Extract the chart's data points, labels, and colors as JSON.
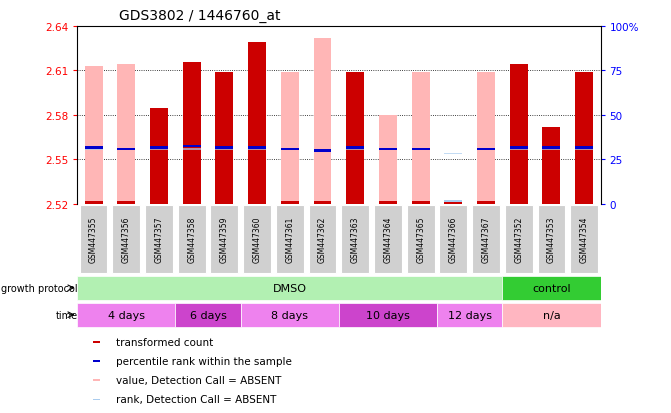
{
  "title": "GDS3802 / 1446760_at",
  "samples": [
    "GSM447355",
    "GSM447356",
    "GSM447357",
    "GSM447358",
    "GSM447359",
    "GSM447360",
    "GSM447361",
    "GSM447362",
    "GSM447363",
    "GSM447364",
    "GSM447365",
    "GSM447366",
    "GSM447367",
    "GSM447352",
    "GSM447353",
    "GSM447354"
  ],
  "red_bar_tops": [
    2.522,
    2.522,
    2.585,
    2.616,
    2.609,
    2.629,
    2.522,
    2.522,
    2.609,
    2.522,
    2.522,
    2.522,
    2.522,
    2.614,
    2.572,
    2.609
  ],
  "pink_bar_tops": [
    2.613,
    2.614,
    2.522,
    2.522,
    2.522,
    2.522,
    2.609,
    2.632,
    2.522,
    2.58,
    2.609,
    2.522,
    2.609,
    2.522,
    2.522,
    2.522
  ],
  "blue_marker_y": [
    2.558,
    2.557,
    2.558,
    2.559,
    2.558,
    2.558,
    2.557,
    2.556,
    2.558,
    2.557,
    2.557,
    2.522,
    2.557,
    2.558,
    2.558,
    2.558
  ],
  "lightblue_marker_y": [
    2.557,
    2.557,
    2.557,
    2.557,
    2.557,
    2.557,
    2.557,
    2.556,
    2.557,
    2.557,
    2.557,
    2.554,
    2.557,
    2.557,
    2.557,
    2.557
  ],
  "blue_is_absent": [
    false,
    false,
    false,
    false,
    false,
    false,
    false,
    false,
    false,
    false,
    false,
    true,
    false,
    false,
    false,
    false
  ],
  "base": 2.52,
  "ylim": [
    2.52,
    2.64
  ],
  "yticks_left": [
    2.52,
    2.55,
    2.58,
    2.61,
    2.64
  ],
  "yticks_right_vals": [
    0,
    25,
    50,
    75,
    100
  ],
  "protocol_groups": [
    {
      "label": "DMSO",
      "start": 0,
      "end": 13,
      "color": "#b2f0b2"
    },
    {
      "label": "control",
      "start": 13,
      "end": 16,
      "color": "#33cc33"
    }
  ],
  "time_groups": [
    {
      "label": "4 days",
      "start": 0,
      "end": 3,
      "color": "#ee82ee"
    },
    {
      "label": "6 days",
      "start": 3,
      "end": 5,
      "color": "#cc44cc"
    },
    {
      "label": "8 days",
      "start": 5,
      "end": 8,
      "color": "#ee82ee"
    },
    {
      "label": "10 days",
      "start": 8,
      "end": 11,
      "color": "#cc44cc"
    },
    {
      "label": "12 days",
      "start": 11,
      "end": 13,
      "color": "#ee82ee"
    },
    {
      "label": "n/a",
      "start": 13,
      "end": 16,
      "color": "#ffb6c1"
    }
  ],
  "bar_width": 0.55,
  "red_color": "#cc0000",
  "pink_color": "#ffb6b6",
  "blue_color": "#0000cc",
  "lightblue_color": "#aaccee",
  "bg_color": "#ffffff",
  "legend_items": [
    {
      "label": "transformed count",
      "color": "#cc0000"
    },
    {
      "label": "percentile rank within the sample",
      "color": "#0000cc"
    },
    {
      "label": "value, Detection Call = ABSENT",
      "color": "#ffb6b6"
    },
    {
      "label": "rank, Detection Call = ABSENT",
      "color": "#aaccee"
    }
  ],
  "growth_protocol_label": "growth protocol",
  "time_label": "time"
}
